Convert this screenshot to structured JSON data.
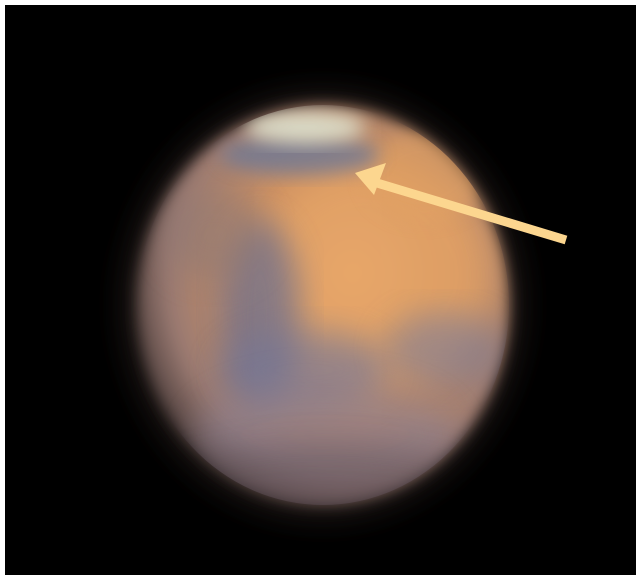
{
  "image": {
    "subject": "planet-mars",
    "colors": {
      "background": "#000000",
      "frame": "#ffffff",
      "planet_base": "#c98a5a",
      "planet_highlight": "#e8a868",
      "dark_region": "#6e6f8e",
      "polar_cap": "#d8dcc8",
      "arrow": "#fcd68f"
    }
  }
}
